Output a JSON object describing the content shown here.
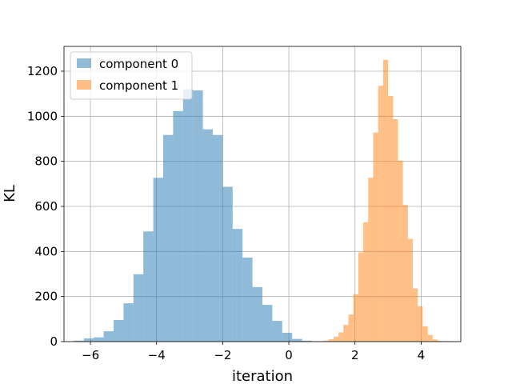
{
  "chart_data": {
    "type": "histogram",
    "xlabel": "iteration",
    "ylabel": "KL",
    "xlim": [
      -6.8,
      5.2
    ],
    "ylim": [
      0,
      1310
    ],
    "xticks": [
      -6,
      -4,
      -2,
      0,
      2,
      4
    ],
    "yticks": [
      0,
      200,
      400,
      600,
      800,
      1000,
      1200
    ],
    "grid": true,
    "legend_position": "top-left",
    "series": [
      {
        "name": "component 0",
        "color": "#1f77b4",
        "opacity": 0.5,
        "bins": [
          {
            "x0": -6.5,
            "x1": -6.2,
            "count": 4
          },
          {
            "x0": -6.2,
            "x1": -5.9,
            "count": 14
          },
          {
            "x0": -5.9,
            "x1": -5.6,
            "count": 19
          },
          {
            "x0": -5.6,
            "x1": -5.3,
            "count": 46
          },
          {
            "x0": -5.3,
            "x1": -5.0,
            "count": 96
          },
          {
            "x0": -5.0,
            "x1": -4.7,
            "count": 170
          },
          {
            "x0": -4.7,
            "x1": -4.4,
            "count": 299
          },
          {
            "x0": -4.4,
            "x1": -4.1,
            "count": 489
          },
          {
            "x0": -4.1,
            "x1": -3.8,
            "count": 727
          },
          {
            "x0": -3.8,
            "x1": -3.5,
            "count": 917
          },
          {
            "x0": -3.5,
            "x1": -3.2,
            "count": 1023
          },
          {
            "x0": -3.2,
            "x1": -2.9,
            "count": 1120
          },
          {
            "x0": -2.9,
            "x1": -2.6,
            "count": 1115
          },
          {
            "x0": -2.6,
            "x1": -2.3,
            "count": 942
          },
          {
            "x0": -2.3,
            "x1": -2.0,
            "count": 917
          },
          {
            "x0": -2.0,
            "x1": -1.7,
            "count": 687
          },
          {
            "x0": -1.7,
            "x1": -1.4,
            "count": 500
          },
          {
            "x0": -1.4,
            "x1": -1.1,
            "count": 373
          },
          {
            "x0": -1.1,
            "x1": -0.8,
            "count": 242
          },
          {
            "x0": -0.8,
            "x1": -0.5,
            "count": 163
          },
          {
            "x0": -0.5,
            "x1": -0.2,
            "count": 92
          },
          {
            "x0": -0.2,
            "x1": 0.1,
            "count": 39
          },
          {
            "x0": 0.1,
            "x1": 0.4,
            "count": 12
          },
          {
            "x0": 0.4,
            "x1": 0.7,
            "count": 4
          }
        ]
      },
      {
        "name": "component 1",
        "color": "#ff7f0e",
        "opacity": 0.5,
        "bins": [
          {
            "x0": 1.05,
            "x1": 1.2,
            "count": 4
          },
          {
            "x0": 1.2,
            "x1": 1.35,
            "count": 10
          },
          {
            "x0": 1.35,
            "x1": 1.5,
            "count": 22
          },
          {
            "x0": 1.5,
            "x1": 1.65,
            "count": 41
          },
          {
            "x0": 1.65,
            "x1": 1.8,
            "count": 74
          },
          {
            "x0": 1.8,
            "x1": 1.95,
            "count": 120
          },
          {
            "x0": 1.95,
            "x1": 2.1,
            "count": 210
          },
          {
            "x0": 2.1,
            "x1": 2.25,
            "count": 396
          },
          {
            "x0": 2.25,
            "x1": 2.4,
            "count": 530
          },
          {
            "x0": 2.4,
            "x1": 2.55,
            "count": 727
          },
          {
            "x0": 2.55,
            "x1": 2.7,
            "count": 928
          },
          {
            "x0": 2.7,
            "x1": 2.85,
            "count": 1135
          },
          {
            "x0": 2.85,
            "x1": 3.0,
            "count": 1250
          },
          {
            "x0": 3.0,
            "x1": 3.15,
            "count": 1090
          },
          {
            "x0": 3.15,
            "x1": 3.3,
            "count": 987
          },
          {
            "x0": 3.3,
            "x1": 3.45,
            "count": 803
          },
          {
            "x0": 3.45,
            "x1": 3.6,
            "count": 606
          },
          {
            "x0": 3.6,
            "x1": 3.75,
            "count": 456
          },
          {
            "x0": 3.75,
            "x1": 3.9,
            "count": 236
          },
          {
            "x0": 3.9,
            "x1": 4.05,
            "count": 157
          },
          {
            "x0": 4.05,
            "x1": 4.2,
            "count": 68
          },
          {
            "x0": 4.2,
            "x1": 4.35,
            "count": 30
          },
          {
            "x0": 4.35,
            "x1": 4.5,
            "count": 9
          },
          {
            "x0": 4.5,
            "x1": 4.65,
            "count": 3
          }
        ]
      }
    ]
  }
}
